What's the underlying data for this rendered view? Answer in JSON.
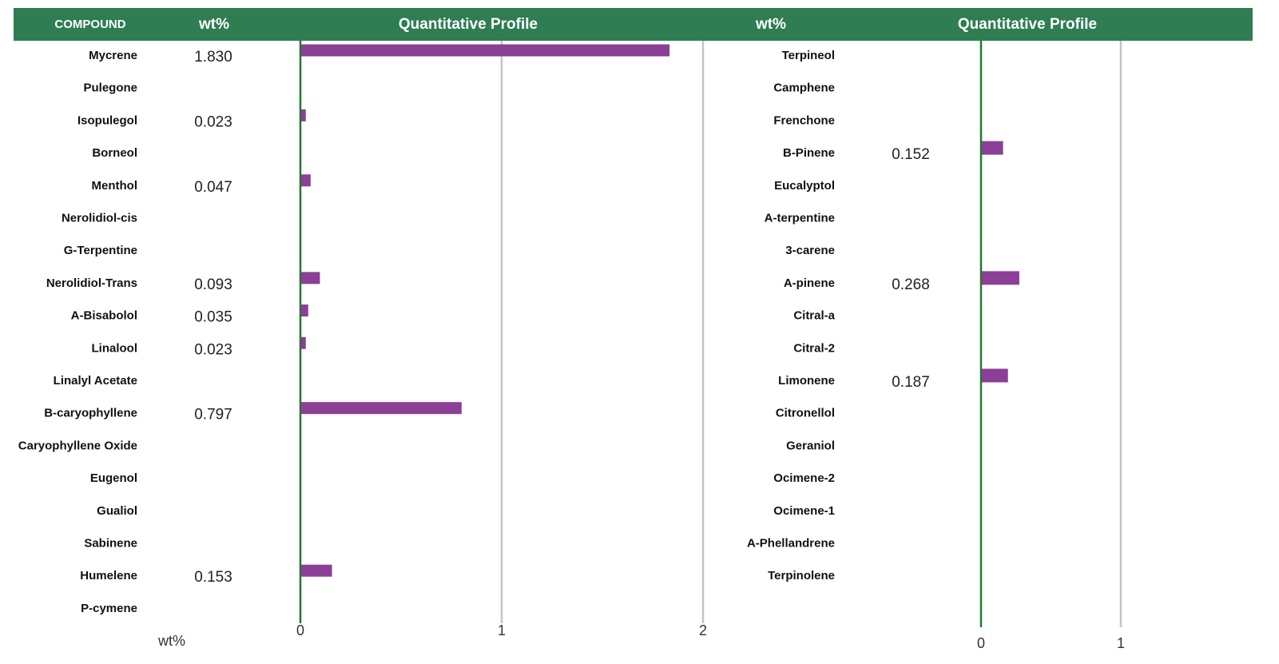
{
  "header": {
    "compound": "COMPOUND",
    "wt_left": "wt%",
    "profile_left": "Quantitative Profile",
    "wt_right": "wt%",
    "profile_right": "Quantitative Profile"
  },
  "chart_data": [
    {
      "type": "bar",
      "orientation": "horizontal",
      "x_label": "wt%",
      "color": "#8b3f96",
      "categories": [
        "Mycrene",
        "Pulegone",
        "Isopulegol",
        "Borneol",
        "Menthol",
        "Nerolidiol-cis",
        "G-Terpentine",
        "Nerolidiol-Trans",
        "A-Bisabolol",
        "Linalool",
        "Linalyl Acetate",
        "B-caryophyllene",
        "Caryophyllene Oxide",
        "Eugenol",
        "Gualiol",
        "Sabinene",
        "Humelene",
        "P-cymene"
      ],
      "values": [
        1.83,
        null,
        0.023,
        null,
        0.047,
        null,
        null,
        0.093,
        0.035,
        0.023,
        null,
        0.797,
        null,
        null,
        null,
        null,
        0.153,
        null
      ],
      "value_labels": [
        "1.830",
        null,
        "0.023",
        null,
        "0.047",
        null,
        null,
        "0.093",
        "0.035",
        "0.023",
        null,
        "0.797",
        null,
        null,
        null,
        null,
        "0.153",
        null
      ],
      "xlim": [
        0,
        2
      ],
      "xticks": [
        0,
        1,
        2
      ],
      "grid": true
    },
    {
      "type": "bar",
      "orientation": "horizontal",
      "color": "#8b3f96",
      "categories": [
        "Terpineol",
        "Camphene",
        "Frenchone",
        "B-Pinene",
        "Eucalyptol",
        "A-terpentine",
        "3-carene",
        "A-pinene",
        "Citral-a",
        "Citral-2",
        "Limonene",
        "Citronellol",
        "Geraniol",
        "Ocimene-2",
        "Ocimene-1",
        "A-Phellandrene",
        "Terpinolene"
      ],
      "values": [
        null,
        null,
        null,
        0.152,
        null,
        null,
        null,
        0.268,
        null,
        null,
        0.187,
        null,
        null,
        null,
        null,
        null,
        null
      ],
      "value_labels": [
        null,
        null,
        null,
        "0.152",
        null,
        null,
        null,
        "0.268",
        null,
        null,
        "0.187",
        null,
        null,
        null,
        null,
        null,
        null
      ],
      "xlim": [
        0,
        2
      ],
      "xticks": [
        0,
        1
      ],
      "grid": true
    }
  ]
}
